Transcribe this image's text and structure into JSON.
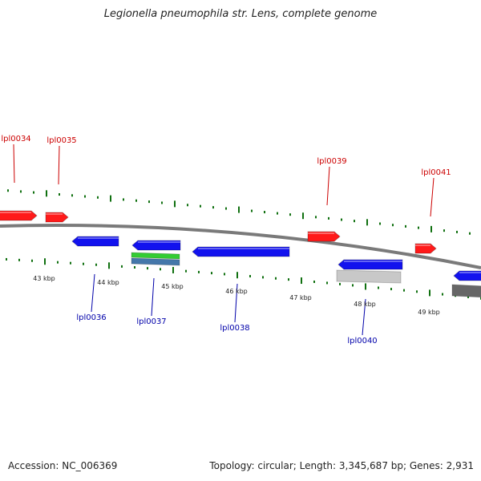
{
  "title": "Legionella pneumophila str. Lens, complete genome",
  "accession_text": "Accession: NC_006369",
  "summary_text": "Topology: circular; Length: 3,345,687 bp; Genes: 2,931",
  "colors": {
    "forward_gene": "#ff1a1a",
    "forward_label": "#cc0000",
    "reverse_gene": "#1212ee",
    "reverse_label": "#0000aa",
    "tick": "#107010",
    "backbone": "#7a7a7a",
    "green_feature": "#33cc33",
    "steel_feature": "#4477aa",
    "light_gray_feature": "#c8c8c8",
    "dark_gray_feature": "#666666"
  },
  "scale_labels": [
    "43 kbp",
    "44 kbp",
    "45 kbp",
    "46 kbp",
    "47 kbp",
    "48 kbp",
    "49 kbp"
  ],
  "forward_genes": [
    {
      "label": "lpl0034",
      "shape": "arrow"
    },
    {
      "label": "lpl0035",
      "shape": "arrow"
    },
    {
      "label": "lpl0039",
      "shape": "arrow"
    },
    {
      "label": "lpl0041",
      "shape": "arrow"
    }
  ],
  "reverse_genes": [
    {
      "label": "lpl0036",
      "shape": "arrow"
    },
    {
      "label": "lpl0037",
      "shape": "arrow"
    },
    {
      "label": "lpl0038",
      "shape": "arrow"
    },
    {
      "label": "lpl0040",
      "shape": "arrow"
    },
    {
      "label": "",
      "shape": "arrow"
    }
  ],
  "other_features": [
    {
      "name": "green-feature",
      "color_key": "green_feature"
    },
    {
      "name": "steel-blue-feature",
      "color_key": "steel_feature"
    },
    {
      "name": "light-gray-feature",
      "color_key": "light_gray_feature"
    },
    {
      "name": "dark-gray-feature",
      "color_key": "dark_gray_feature"
    }
  ]
}
